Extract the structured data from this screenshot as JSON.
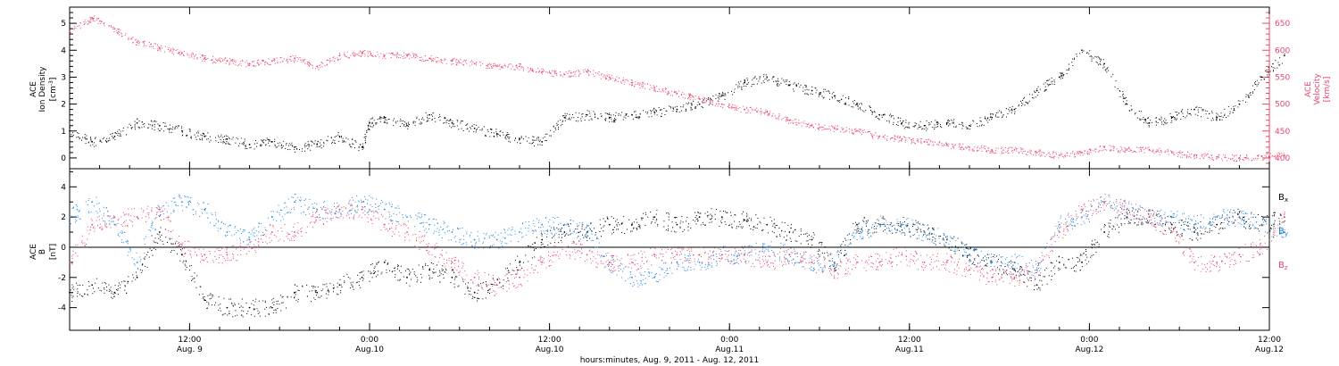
{
  "chart_data": [
    {
      "type": "scatter",
      "panel": "top",
      "ylabel_lines": [
        "ACE",
        "Ion Density"
      ],
      "yunit_prefix": "[cm",
      "yunit_sup": "-3",
      "yunit_suffix": "]",
      "ylim": [
        -0.4,
        5.6
      ],
      "yticks": [
        "0",
        "1",
        "2",
        "3",
        "4",
        "5"
      ],
      "y2label_lines": [
        "ACE",
        "Velocity"
      ],
      "y2unit": "[km/s]",
      "y2lim": [
        380,
        680
      ],
      "y2ticks": [
        "400",
        "450",
        "500",
        "550",
        "600",
        "650"
      ],
      "series": [
        {
          "axis": "left",
          "color": "#000000",
          "x": [
            0,
            3,
            6,
            9,
            12,
            15,
            18,
            21,
            24,
            27,
            30,
            33,
            36,
            39,
            40,
            42,
            45,
            48,
            51,
            54,
            57,
            60,
            63,
            66,
            69,
            72,
            75,
            78,
            81,
            84,
            87,
            90,
            93,
            96,
            99,
            102,
            105,
            108,
            111,
            114,
            117,
            120,
            123,
            126,
            129,
            132,
            135,
            138,
            141,
            144,
            147,
            150,
            153,
            156,
            159,
            162
          ],
          "y": [
            1.0,
            0.6,
            0.8,
            1.3,
            1.2,
            1.0,
            0.8,
            0.7,
            0.5,
            0.6,
            0.4,
            0.5,
            0.8,
            0.4,
            1.3,
            1.5,
            1.2,
            1.6,
            1.3,
            1.1,
            0.9,
            0.7,
            0.6,
            1.5,
            1.6,
            1.5,
            1.6,
            1.7,
            1.8,
            2.0,
            2.3,
            2.8,
            3.0,
            2.7,
            2.5,
            2.3,
            2.0,
            1.6,
            1.3,
            1.2,
            1.3,
            1.2,
            1.5,
            1.8,
            2.5,
            3.0,
            4.0,
            3.5,
            2.0,
            1.3,
            1.5,
            1.8,
            1.5,
            2.0,
            3.0,
            3.8
          ]
        },
        {
          "axis": "right",
          "color": "#e8456b",
          "x": [
            0,
            3,
            6,
            9,
            12,
            15,
            18,
            21,
            24,
            27,
            30,
            33,
            36,
            39,
            42,
            45,
            48,
            51,
            54,
            57,
            60,
            63,
            66,
            69,
            72,
            75,
            78,
            81,
            84,
            87,
            90,
            93,
            96,
            99,
            102,
            105,
            108,
            111,
            114,
            117,
            120,
            123,
            126,
            129,
            132,
            135,
            138,
            141,
            144,
            147,
            150,
            153,
            156,
            159,
            162
          ],
          "y": [
            635,
            660,
            640,
            615,
            605,
            595,
            585,
            580,
            575,
            580,
            585,
            570,
            590,
            595,
            590,
            590,
            585,
            580,
            575,
            570,
            570,
            560,
            555,
            560,
            550,
            540,
            530,
            520,
            510,
            500,
            490,
            485,
            470,
            460,
            455,
            450,
            440,
            435,
            430,
            425,
            420,
            415,
            415,
            410,
            405,
            410,
            420,
            415,
            415,
            410,
            405,
            402,
            400,
            403,
            405
          ]
        }
      ]
    },
    {
      "type": "scatter",
      "panel": "bottom",
      "ylabel_lines": [
        "ACE",
        "B"
      ],
      "yunit": "[nT]",
      "ylim": [
        -5.5,
        5.2
      ],
      "yticks": [
        "-4",
        "-2",
        "0",
        "2",
        "4"
      ],
      "legend_items": [
        {
          "main": "B",
          "sub": "x",
          "color": "#000000"
        },
        {
          "main": "B",
          "sub": "y",
          "color": "#1f87e0"
        },
        {
          "main": "B",
          "sub": "z",
          "color": "#e8456b"
        }
      ],
      "series": [
        {
          "name": "Bx",
          "color": "#000000",
          "x": [
            0,
            3,
            6,
            9,
            12,
            15,
            18,
            21,
            24,
            27,
            30,
            33,
            36,
            39,
            42,
            45,
            48,
            51,
            54,
            57,
            60,
            63,
            66,
            69,
            72,
            75,
            78,
            81,
            84,
            87,
            90,
            93,
            96,
            99,
            102,
            105,
            108,
            111,
            114,
            117,
            120,
            123,
            126,
            129,
            132,
            135,
            138,
            141,
            144,
            147,
            150,
            153,
            156,
            159,
            162
          ],
          "y": [
            -3,
            -2.5,
            -3,
            -2,
            1,
            -0.5,
            -3.5,
            -4,
            -4,
            -4,
            -3,
            -3,
            -2.5,
            -2,
            -1,
            -2,
            -1.5,
            -2,
            -3,
            -2.5,
            -1,
            0.5,
            1,
            1,
            1.5,
            1.5,
            2,
            1.5,
            2,
            2,
            1.8,
            1.5,
            1,
            0.5,
            -1,
            1.5,
            1.5,
            1.5,
            1,
            0.5,
            -0.5,
            -1,
            -1.5,
            -2.5,
            -1,
            -1,
            1,
            2,
            2,
            1.5,
            1,
            1.5,
            2,
            1.5,
            2
          ]
        },
        {
          "name": "By",
          "color": "#1f87e0",
          "x": [
            0,
            3,
            6,
            9,
            12,
            15,
            18,
            21,
            24,
            27,
            30,
            33,
            36,
            39,
            42,
            45,
            48,
            51,
            54,
            57,
            60,
            63,
            66,
            69,
            72,
            75,
            78,
            81,
            84,
            87,
            90,
            93,
            96,
            99,
            102,
            105,
            108,
            111,
            114,
            117,
            120,
            123,
            126,
            129,
            132,
            135,
            138,
            141,
            144,
            147,
            150,
            153,
            156,
            159,
            162
          ],
          "y": [
            2,
            3,
            1.5,
            -1,
            2.5,
            3,
            2.5,
            1,
            0.5,
            2,
            3,
            2.5,
            2.5,
            3,
            2.5,
            2,
            1.5,
            1,
            0.5,
            0.5,
            1,
            1.5,
            1.5,
            1,
            -1,
            -2,
            -2,
            -1,
            -1,
            -0.5,
            -0.5,
            0,
            -0.5,
            -1,
            -1,
            1,
            1.5,
            1.5,
            1,
            0.5,
            -0.5,
            -1,
            -1,
            -1.5,
            1.5,
            2,
            3,
            2.5,
            2,
            2,
            1.5,
            2,
            2,
            1.5,
            1
          ]
        },
        {
          "name": "Bz",
          "color": "#e8456b",
          "x": [
            0,
            3,
            6,
            9,
            12,
            15,
            18,
            21,
            24,
            27,
            30,
            33,
            36,
            39,
            42,
            45,
            48,
            51,
            54,
            57,
            60,
            63,
            66,
            69,
            72,
            75,
            78,
            81,
            84,
            87,
            90,
            93,
            96,
            99,
            102,
            105,
            108,
            111,
            114,
            117,
            120,
            123,
            126,
            129,
            132,
            135,
            138,
            141,
            144,
            147,
            150,
            153,
            156,
            159,
            162
          ],
          "y": [
            -1,
            1.5,
            2,
            2,
            2.5,
            0,
            -0.5,
            -0.5,
            0,
            1,
            1,
            2,
            2.5,
            2.5,
            1.5,
            1,
            0,
            -1,
            -2,
            -2.5,
            -2,
            -1,
            0,
            -0.5,
            -1,
            -1,
            -0.5,
            -0.5,
            -0.5,
            -0.5,
            -0.5,
            -1,
            -0.5,
            -1,
            -1.5,
            -1,
            -1,
            -0.5,
            -1,
            -1,
            -1.5,
            -2,
            -2,
            -1.5,
            1,
            2.5,
            3,
            2.5,
            2,
            1,
            -1,
            -1,
            -0.5,
            0,
            2
          ]
        }
      ]
    },
    {
      "type": "axis",
      "xlabel": "hours:minutes, Aug.  9, 2011 - Aug. 12, 2011",
      "xlim": [
        0,
        80
      ],
      "xticks": [
        {
          "x": 8,
          "time": "12:00",
          "date": "Aug. 9"
        },
        {
          "x": 20,
          "time": "0:00",
          "date": "Aug.10"
        },
        {
          "x": 32,
          "time": "12:00",
          "date": "Aug.10"
        },
        {
          "x": 44,
          "time": "0:00",
          "date": "Aug.11"
        },
        {
          "x": 56,
          "time": "12:00",
          "date": "Aug.11"
        },
        {
          "x": 68,
          "time": "0:00",
          "date": "Aug.12"
        },
        {
          "x": 80,
          "time": "12:00",
          "date": "Aug.12"
        }
      ]
    }
  ]
}
